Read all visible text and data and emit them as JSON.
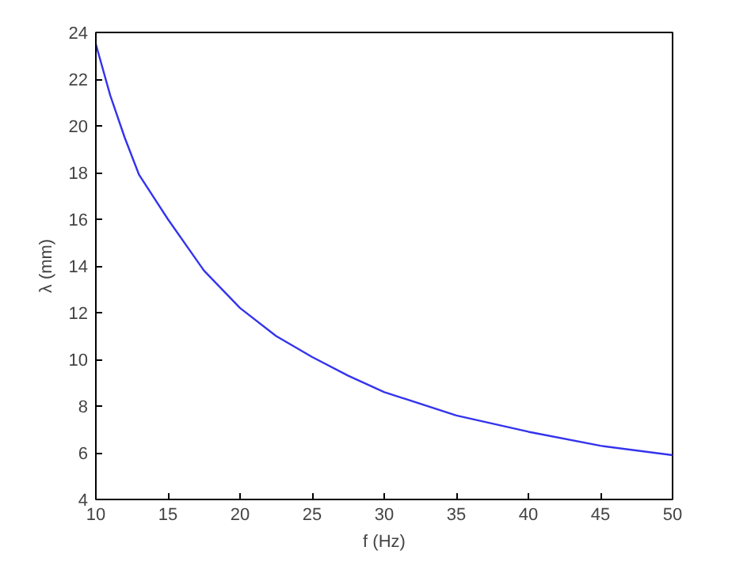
{
  "chart_data": {
    "type": "line",
    "xlabel": "f (Hz)",
    "ylabel": "λ (mm)",
    "x": [
      10,
      11,
      12,
      13,
      15,
      17.5,
      20,
      22.5,
      25,
      27.5,
      30,
      35,
      40,
      45,
      50
    ],
    "series": [
      {
        "color": "#3333ee",
        "values": [
          23.5,
          21.3,
          19.5,
          17.9,
          16.0,
          13.8,
          12.2,
          11.0,
          10.1,
          9.3,
          8.6,
          7.6,
          6.9,
          6.3,
          5.9
        ]
      }
    ],
    "xlim": [
      10,
      50
    ],
    "ylim": [
      4,
      24
    ],
    "xticks": [
      10,
      15,
      20,
      25,
      30,
      35,
      40,
      45,
      50
    ],
    "yticks": [
      4,
      6,
      8,
      10,
      12,
      14,
      16,
      18,
      20,
      22,
      24
    ],
    "grid": false,
    "marker": "none",
    "line_style": "solid"
  }
}
